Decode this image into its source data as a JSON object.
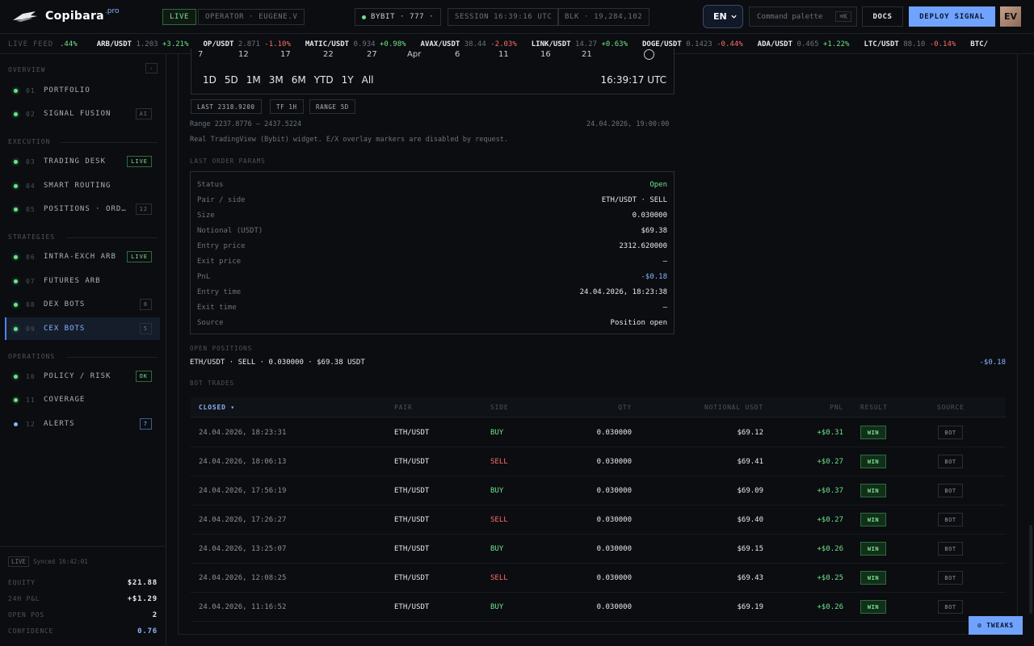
{
  "header": {
    "brand": "Copibara",
    "brand_suffix": ".pro",
    "live_chip": "LIVE",
    "operator": "OPERATOR · EUGENE.V",
    "exchange": "BYBIT · 777 ·",
    "session": "SESSION 16:39:16 UTC",
    "block": "BLK · 19,284,102",
    "lang": "EN",
    "command_palette": "Command palette",
    "command_kbd": "⌘K",
    "docs": "DOCS",
    "deploy": "DEPLOY SIGNAL",
    "avatar": "EV"
  },
  "ticker": {
    "label": "LIVE FEED",
    "lead_change": ".44%",
    "items": [
      {
        "sym": "ARB/USDT",
        "px": "1.203",
        "chg": "+3.21%",
        "dir": "up"
      },
      {
        "sym": "OP/USDT",
        "px": "2.871",
        "chg": "-1.10%",
        "dir": "down"
      },
      {
        "sym": "MATIC/USDT",
        "px": "0.934",
        "chg": "+0.98%",
        "dir": "up"
      },
      {
        "sym": "AVAX/USDT",
        "px": "38.44",
        "chg": "-2.03%",
        "dir": "down"
      },
      {
        "sym": "LINK/USDT",
        "px": "14.27",
        "chg": "+0.63%",
        "dir": "up"
      },
      {
        "sym": "DOGE/USDT",
        "px": "0.1423",
        "chg": "-0.44%",
        "dir": "down"
      },
      {
        "sym": "ADA/USDT",
        "px": "0.465",
        "chg": "+1.22%",
        "dir": "up"
      },
      {
        "sym": "LTC/USDT",
        "px": "88.10",
        "chg": "-0.14%",
        "dir": "down"
      },
      {
        "sym": "BTC/",
        "px": "",
        "chg": "",
        "dir": "up"
      }
    ]
  },
  "sidebar": {
    "overview": "OVERVIEW",
    "overview_btn": "‹",
    "execution": "EXECUTION",
    "strategies": "STRATEGIES",
    "operations": "OPERATIONS",
    "items": [
      {
        "num": "01",
        "label": "PORTFOLIO",
        "badge": ""
      },
      {
        "num": "02",
        "label": "SIGNAL FUSION",
        "badge": "AI"
      },
      {
        "num": "03",
        "label": "TRADING DESK",
        "badge": "LIVE"
      },
      {
        "num": "04",
        "label": "SMART ROUTING",
        "badge": ""
      },
      {
        "num": "05",
        "label": "POSITIONS · ORD…",
        "badge": "12"
      },
      {
        "num": "06",
        "label": "INTRA-EXCH ARB",
        "badge": "LIVE"
      },
      {
        "num": "07",
        "label": "FUTURES ARB",
        "badge": ""
      },
      {
        "num": "08",
        "label": "DEX BOTS",
        "badge": "8"
      },
      {
        "num": "09",
        "label": "CEX BOTS",
        "badge": "5"
      },
      {
        "num": "10",
        "label": "POLICY / RISK",
        "badge": "OK"
      },
      {
        "num": "11",
        "label": "COVERAGE",
        "badge": ""
      },
      {
        "num": "12",
        "label": "ALERTS",
        "badge": "7"
      }
    ],
    "footer": {
      "live": "LIVE",
      "synced": "Synced 16:42:01",
      "equity_label": "EQUITY",
      "equity": "$21.88",
      "pnl_label": "24H P&L",
      "pnl": "+$1.29",
      "openpos_label": "OPEN POS",
      "openpos": "2",
      "confidence_label": "CONFIDENCE",
      "confidence": "0.76"
    }
  },
  "chart": {
    "x_ticks": [
      "7",
      "12",
      "17",
      "22",
      "27",
      "Apr",
      "6",
      "11",
      "16",
      "21"
    ],
    "ranges": [
      "1D",
      "5D",
      "1M",
      "3M",
      "6M",
      "YTD",
      "1Y",
      "All"
    ],
    "time": "16:39:17 UTC",
    "pill_last": "LAST 2318.9200",
    "pill_tf": "TF 1H",
    "pill_range": "RANGE 5D",
    "range_text": "Range 2237.8776 – 2437.5224",
    "range_date": "24.04.2026, 19:00:00",
    "note": "Real TradingView (Bybit) widget. E/X overlay markers are disabled by request."
  },
  "params": {
    "title": "LAST ORDER PARAMS",
    "rows": [
      {
        "k": "Status",
        "v": "Open"
      },
      {
        "k": "Pair / side",
        "v": "ETH/USDT · SELL"
      },
      {
        "k": "Size",
        "v": "0.030000"
      },
      {
        "k": "Notional (USDT)",
        "v": "$69.38"
      },
      {
        "k": "Entry price",
        "v": "2312.620000"
      },
      {
        "k": "Exit price",
        "v": "—"
      },
      {
        "k": "PnL",
        "v": "-$0.18"
      },
      {
        "k": "Entry time",
        "v": "24.04.2026, 18:23:38"
      },
      {
        "k": "Exit time",
        "v": "—"
      },
      {
        "k": "Source",
        "v": "Position open"
      }
    ]
  },
  "open_positions": {
    "title": "OPEN POSITIONS",
    "line": "ETH/USDT · SELL · 0.030000 · $69.38 USDT",
    "pnl": "-$0.18"
  },
  "bot_trades": {
    "title": "BOT TRADES",
    "headers": [
      "CLOSED ▾",
      "PAIR",
      "SIDE",
      "QTY",
      "NOTIONAL USDT",
      "PNL",
      "RESULT",
      "SOURCE"
    ],
    "rows": [
      {
        "closed": "24.04.2026, 18:23:31",
        "pair": "ETH/USDT",
        "side": "BUY",
        "qty": "0.030000",
        "notional": "$69.12",
        "pnl": "+$0.31",
        "result": "WIN",
        "source": "BOT"
      },
      {
        "closed": "24.04.2026, 18:06:13",
        "pair": "ETH/USDT",
        "side": "SELL",
        "qty": "0.030000",
        "notional": "$69.41",
        "pnl": "+$0.27",
        "result": "WIN",
        "source": "BOT"
      },
      {
        "closed": "24.04.2026, 17:56:19",
        "pair": "ETH/USDT",
        "side": "BUY",
        "qty": "0.030000",
        "notional": "$69.09",
        "pnl": "+$0.37",
        "result": "WIN",
        "source": "BOT"
      },
      {
        "closed": "24.04.2026, 17:26:27",
        "pair": "ETH/USDT",
        "side": "SELL",
        "qty": "0.030000",
        "notional": "$69.40",
        "pnl": "+$0.27",
        "result": "WIN",
        "source": "BOT"
      },
      {
        "closed": "24.04.2026, 13:25:07",
        "pair": "ETH/USDT",
        "side": "BUY",
        "qty": "0.030000",
        "notional": "$69.15",
        "pnl": "+$0.26",
        "result": "WIN",
        "source": "BOT"
      },
      {
        "closed": "24.04.2026, 12:08:25",
        "pair": "ETH/USDT",
        "side": "SELL",
        "qty": "0.030000",
        "notional": "$69.43",
        "pnl": "+$0.25",
        "result": "WIN",
        "source": "BOT"
      },
      {
        "closed": "24.04.2026, 11:16:52",
        "pair": "ETH/USDT",
        "side": "BUY",
        "qty": "0.030000",
        "notional": "$69.19",
        "pnl": "+$0.26",
        "result": "WIN",
        "source": "BOT"
      }
    ]
  },
  "tweaks": "⚙ TWEAKS",
  "colors": {
    "accent": "#6fa3ff",
    "up": "#6ee389",
    "down": "#ff6b6b"
  }
}
